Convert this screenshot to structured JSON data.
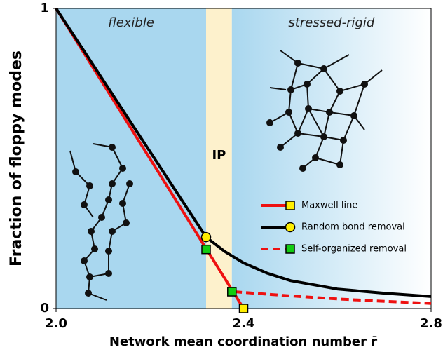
{
  "chart_data": {
    "type": "line",
    "xlabel": "Network mean coordination number r̄",
    "ylabel": "Fraction of floppy modes",
    "xlim": [
      2.0,
      2.8
    ],
    "ylim": [
      0,
      1
    ],
    "xticks": [
      {
        "value": 2.0,
        "label": "2.0"
      },
      2.4,
      2.8
    ],
    "yticks": [
      0,
      1
    ],
    "regions": [
      {
        "label": "flexible",
        "range": [
          2.0,
          2.32
        ],
        "color": "#a9d7ef"
      },
      {
        "label": "IP",
        "range": [
          2.32,
          2.375
        ],
        "color": "#fdf1cc"
      },
      {
        "label": "stressed-rigid",
        "range": [
          2.375,
          2.8
        ],
        "color": "#a9d7ef",
        "gradient_to": "#ffffff"
      }
    ],
    "legend": "center-right",
    "series": [
      {
        "name": "Maxwell line",
        "color": "#ee1111",
        "dash": false,
        "marker": "square",
        "marker_color": "#ffee00",
        "x": [
          2.0,
          2.4
        ],
        "values": [
          1,
          0
        ],
        "marker_points": {
          "x": [
            2.4
          ],
          "y": [
            0
          ]
        }
      },
      {
        "name": "Random bond removal",
        "color": "#000000",
        "dash": false,
        "marker": "circle",
        "marker_color": "#ffee00",
        "x": [
          2.0,
          2.32,
          2.36,
          2.4,
          2.45,
          2.5,
          2.6,
          2.7,
          2.8
        ],
        "values": [
          1,
          0.238,
          0.19,
          0.152,
          0.118,
          0.093,
          0.065,
          0.051,
          0.04
        ],
        "marker_points": {
          "x": [
            2.32
          ],
          "y": [
            0.238
          ]
        }
      },
      {
        "name": "Self-organized removal",
        "color": "#ee1111",
        "dash": true,
        "marker": "square",
        "marker_color": "#11cc11",
        "x": [
          2.38,
          2.5,
          2.6,
          2.7,
          2.8
        ],
        "values": [
          0.056,
          0.042,
          0.032,
          0.024,
          0.017
        ],
        "marker_points": {
          "x": [
            2.32,
            2.375
          ],
          "y": [
            0.197,
            0.056
          ]
        }
      }
    ]
  }
}
